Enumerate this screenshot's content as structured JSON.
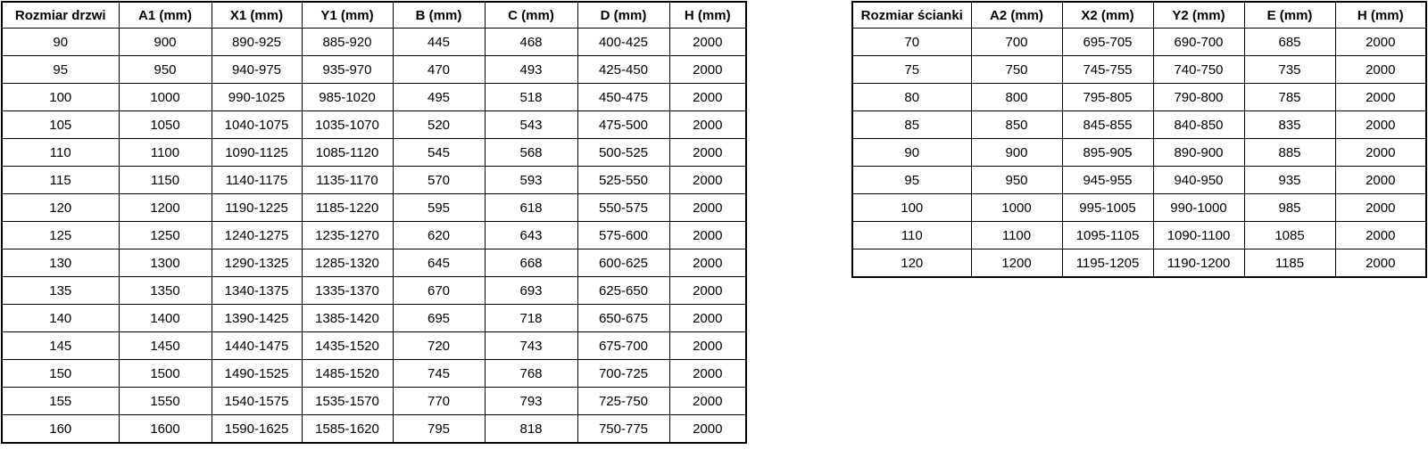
{
  "door_table": {
    "headers": [
      "Rozmiar drzwi",
      "A1 (mm)",
      "X1 (mm)",
      "Y1 (mm)",
      "B (mm)",
      "C (mm)",
      "D (mm)",
      "H (mm)"
    ],
    "rows": [
      [
        "90",
        "900",
        "890-925",
        "885-920",
        "445",
        "468",
        "400-425",
        "2000"
      ],
      [
        "95",
        "950",
        "940-975",
        "935-970",
        "470",
        "493",
        "425-450",
        "2000"
      ],
      [
        "100",
        "1000",
        "990-1025",
        "985-1020",
        "495",
        "518",
        "450-475",
        "2000"
      ],
      [
        "105",
        "1050",
        "1040-1075",
        "1035-1070",
        "520",
        "543",
        "475-500",
        "2000"
      ],
      [
        "110",
        "1100",
        "1090-1125",
        "1085-1120",
        "545",
        "568",
        "500-525",
        "2000"
      ],
      [
        "115",
        "1150",
        "1140-1175",
        "1135-1170",
        "570",
        "593",
        "525-550",
        "2000"
      ],
      [
        "120",
        "1200",
        "1190-1225",
        "1185-1220",
        "595",
        "618",
        "550-575",
        "2000"
      ],
      [
        "125",
        "1250",
        "1240-1275",
        "1235-1270",
        "620",
        "643",
        "575-600",
        "2000"
      ],
      [
        "130",
        "1300",
        "1290-1325",
        "1285-1320",
        "645",
        "668",
        "600-625",
        "2000"
      ],
      [
        "135",
        "1350",
        "1340-1375",
        "1335-1370",
        "670",
        "693",
        "625-650",
        "2000"
      ],
      [
        "140",
        "1400",
        "1390-1425",
        "1385-1420",
        "695",
        "718",
        "650-675",
        "2000"
      ],
      [
        "145",
        "1450",
        "1440-1475",
        "1435-1520",
        "720",
        "743",
        "675-700",
        "2000"
      ],
      [
        "150",
        "1500",
        "1490-1525",
        "1485-1520",
        "745",
        "768",
        "700-725",
        "2000"
      ],
      [
        "155",
        "1550",
        "1540-1575",
        "1535-1570",
        "770",
        "793",
        "725-750",
        "2000"
      ],
      [
        "160",
        "1600",
        "1590-1625",
        "1585-1620",
        "795",
        "818",
        "750-775",
        "2000"
      ]
    ]
  },
  "panel_table": {
    "headers": [
      "Rozmiar ścianki",
      "A2 (mm)",
      "X2 (mm)",
      "Y2 (mm)",
      "E (mm)",
      "H (mm)"
    ],
    "rows": [
      [
        "70",
        "700",
        "695-705",
        "690-700",
        "685",
        "2000"
      ],
      [
        "75",
        "750",
        "745-755",
        "740-750",
        "735",
        "2000"
      ],
      [
        "80",
        "800",
        "795-805",
        "790-800",
        "785",
        "2000"
      ],
      [
        "85",
        "850",
        "845-855",
        "840-850",
        "835",
        "2000"
      ],
      [
        "90",
        "900",
        "895-905",
        "890-900",
        "885",
        "2000"
      ],
      [
        "95",
        "950",
        "945-955",
        "940-950",
        "935",
        "2000"
      ],
      [
        "100",
        "1000",
        "995-1005",
        "990-1000",
        "985",
        "2000"
      ],
      [
        "110",
        "1100",
        "1095-1105",
        "1090-1100",
        "1085",
        "2000"
      ],
      [
        "120",
        "1200",
        "1195-1205",
        "1190-1200",
        "1185",
        "2000"
      ]
    ]
  },
  "colors": {
    "border": "#000000",
    "background": "#ffffff",
    "text": "#000000"
  }
}
